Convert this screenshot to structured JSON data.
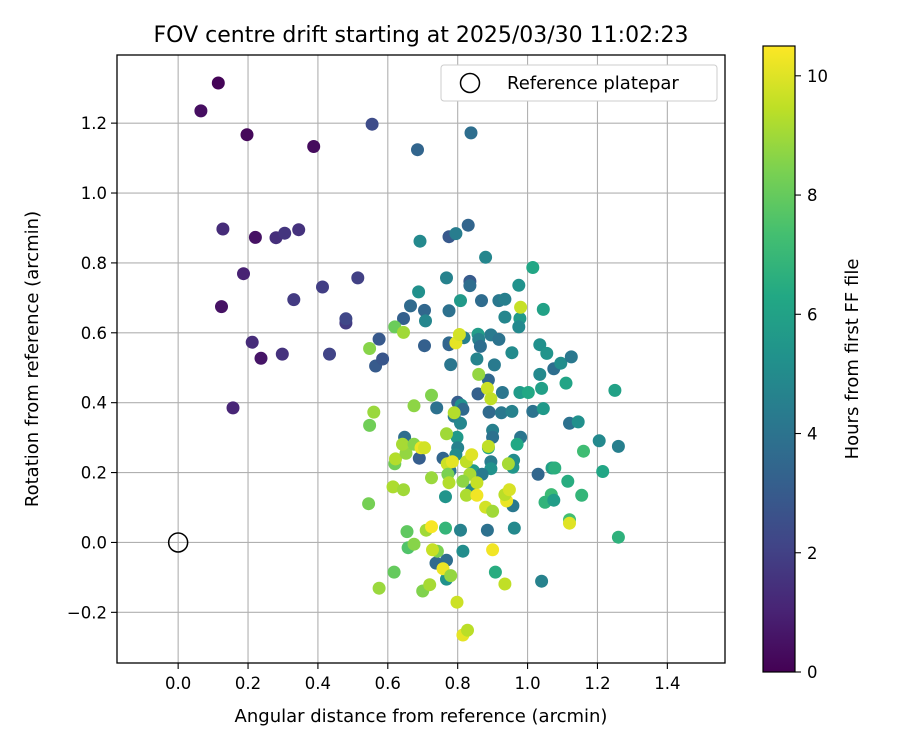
{
  "chart_data": {
    "type": "scatter",
    "title": "FOV centre drift starting at 2025/03/30 11:02:23",
    "xlabel": "Angular distance from reference (arcmin)",
    "ylabel": "Rotation from reference (arcmin)",
    "xlim": [
      -0.175,
      1.565
    ],
    "ylim": [
      -0.345,
      1.395
    ],
    "xticks": [
      "0.0",
      "0.2",
      "0.4",
      "0.6",
      "0.8",
      "1.0",
      "1.2",
      "1.4"
    ],
    "xtick_values": [
      0.0,
      0.2,
      0.4,
      0.6,
      0.8,
      1.0,
      1.2,
      1.4
    ],
    "yticks": [
      "−0.2",
      "0.0",
      "0.2",
      "0.4",
      "0.6",
      "0.8",
      "1.0",
      "1.2"
    ],
    "ytick_values": [
      -0.2,
      0.0,
      0.2,
      0.4,
      0.6,
      0.8,
      1.0,
      1.2
    ],
    "grid": true,
    "legend": {
      "placement": "top-right",
      "label": "Reference platepar",
      "marker": "open-circle"
    },
    "reference_point": {
      "x": 0.0,
      "y": 0.0
    },
    "colorbar": {
      "label": "Hours from first FF file",
      "range": [
        0,
        10.5
      ],
      "ticks": [
        "0",
        "2",
        "4",
        "6",
        "8",
        "10"
      ],
      "tick_values": [
        0,
        2,
        4,
        6,
        8,
        10
      ],
      "colormap": "viridis"
    },
    "points": [
      {
        "x": 0.115,
        "y": 1.315,
        "h": 0.1
      },
      {
        "x": 0.065,
        "y": 1.235,
        "h": 0.4
      },
      {
        "x": 0.197,
        "y": 1.167,
        "h": 0.2
      },
      {
        "x": 0.388,
        "y": 1.133,
        "h": 0.3
      },
      {
        "x": 0.128,
        "y": 0.897,
        "h": 1.3
      },
      {
        "x": 0.221,
        "y": 0.873,
        "h": 0.5
      },
      {
        "x": 0.28,
        "y": 0.872,
        "h": 1.4
      },
      {
        "x": 0.305,
        "y": 0.885,
        "h": 1.6
      },
      {
        "x": 0.345,
        "y": 0.895,
        "h": 1.5
      },
      {
        "x": 0.187,
        "y": 0.769,
        "h": 1.0
      },
      {
        "x": 0.124,
        "y": 0.675,
        "h": 0.5
      },
      {
        "x": 0.331,
        "y": 0.695,
        "h": 1.8
      },
      {
        "x": 0.413,
        "y": 0.731,
        "h": 1.9
      },
      {
        "x": 0.514,
        "y": 0.757,
        "h": 2.0
      },
      {
        "x": 0.212,
        "y": 0.573,
        "h": 1.3
      },
      {
        "x": 0.298,
        "y": 0.539,
        "h": 1.5
      },
      {
        "x": 0.237,
        "y": 0.527,
        "h": 0.6
      },
      {
        "x": 0.433,
        "y": 0.539,
        "h": 2.1
      },
      {
        "x": 0.48,
        "y": 0.628,
        "h": 1.8
      },
      {
        "x": 0.48,
        "y": 0.64,
        "h": 2.2
      },
      {
        "x": 0.157,
        "y": 0.385,
        "h": 1.1
      },
      {
        "x": 0.555,
        "y": 1.197,
        "h": 2.4
      },
      {
        "x": 0.685,
        "y": 1.124,
        "h": 3.4
      },
      {
        "x": 0.838,
        "y": 1.172,
        "h": 3.8
      },
      {
        "x": 0.575,
        "y": 0.582,
        "h": 2.9
      },
      {
        "x": 0.565,
        "y": 0.505,
        "h": 3.0
      },
      {
        "x": 0.585,
        "y": 0.525,
        "h": 2.8
      },
      {
        "x": 0.645,
        "y": 0.641,
        "h": 3.2
      },
      {
        "x": 0.665,
        "y": 0.677,
        "h": 3.6
      },
      {
        "x": 0.705,
        "y": 0.664,
        "h": 3.5
      },
      {
        "x": 0.708,
        "y": 0.634,
        "h": 4.8
      },
      {
        "x": 0.688,
        "y": 0.717,
        "h": 5.2
      },
      {
        "x": 0.692,
        "y": 0.862,
        "h": 4.9
      },
      {
        "x": 0.775,
        "y": 0.875,
        "h": 2.9
      },
      {
        "x": 0.795,
        "y": 0.884,
        "h": 4.4
      },
      {
        "x": 0.83,
        "y": 0.908,
        "h": 3.4
      },
      {
        "x": 0.88,
        "y": 0.816,
        "h": 4.8
      },
      {
        "x": 0.835,
        "y": 0.747,
        "h": 3.0
      },
      {
        "x": 0.835,
        "y": 0.735,
        "h": 3.8
      },
      {
        "x": 0.768,
        "y": 0.757,
        "h": 4.6
      },
      {
        "x": 0.808,
        "y": 0.692,
        "h": 5.6
      },
      {
        "x": 0.868,
        "y": 0.692,
        "h": 3.7
      },
      {
        "x": 0.918,
        "y": 0.692,
        "h": 4.2
      },
      {
        "x": 0.935,
        "y": 0.696,
        "h": 4.5
      },
      {
        "x": 0.975,
        "y": 0.736,
        "h": 5.3
      },
      {
        "x": 1.015,
        "y": 0.787,
        "h": 6.2
      },
      {
        "x": 1.045,
        "y": 0.667,
        "h": 6.0
      },
      {
        "x": 0.978,
        "y": 0.641,
        "h": 5.6
      },
      {
        "x": 0.975,
        "y": 0.617,
        "h": 4.9
      },
      {
        "x": 0.935,
        "y": 0.645,
        "h": 4.8
      },
      {
        "x": 0.895,
        "y": 0.594,
        "h": 4.3
      },
      {
        "x": 0.918,
        "y": 0.581,
        "h": 4.0
      },
      {
        "x": 0.858,
        "y": 0.596,
        "h": 5.8
      },
      {
        "x": 0.86,
        "y": 0.581,
        "h": 4.6
      },
      {
        "x": 0.865,
        "y": 0.561,
        "h": 3.8
      },
      {
        "x": 0.818,
        "y": 0.586,
        "h": 4.5
      },
      {
        "x": 0.775,
        "y": 0.663,
        "h": 3.9
      },
      {
        "x": 0.775,
        "y": 0.571,
        "h": 3.7
      },
      {
        "x": 0.705,
        "y": 0.563,
        "h": 3.2
      },
      {
        "x": 0.775,
        "y": 0.566,
        "h": 3.4
      },
      {
        "x": 0.78,
        "y": 0.509,
        "h": 4.1
      },
      {
        "x": 0.855,
        "y": 0.525,
        "h": 4.7
      },
      {
        "x": 0.905,
        "y": 0.508,
        "h": 4.3
      },
      {
        "x": 0.955,
        "y": 0.543,
        "h": 5.0
      },
      {
        "x": 1.035,
        "y": 0.566,
        "h": 5.2
      },
      {
        "x": 1.055,
        "y": 0.541,
        "h": 5.4
      },
      {
        "x": 1.035,
        "y": 0.481,
        "h": 4.9
      },
      {
        "x": 1.075,
        "y": 0.497,
        "h": 3.8
      },
      {
        "x": 1.095,
        "y": 0.513,
        "h": 5.1
      },
      {
        "x": 1.125,
        "y": 0.531,
        "h": 4.2
      },
      {
        "x": 1.11,
        "y": 0.456,
        "h": 6.1
      },
      {
        "x": 1.04,
        "y": 0.441,
        "h": 5.9
      },
      {
        "x": 0.978,
        "y": 0.429,
        "h": 5.7
      },
      {
        "x": 1.002,
        "y": 0.429,
        "h": 6.3
      },
      {
        "x": 0.928,
        "y": 0.429,
        "h": 4.1
      },
      {
        "x": 0.888,
        "y": 0.465,
        "h": 3.5
      },
      {
        "x": 0.858,
        "y": 0.425,
        "h": 3.2
      },
      {
        "x": 0.8,
        "y": 0.401,
        "h": 3.1
      },
      {
        "x": 0.81,
        "y": 0.393,
        "h": 5.2
      },
      {
        "x": 0.74,
        "y": 0.385,
        "h": 3.9
      },
      {
        "x": 0.815,
        "y": 0.381,
        "h": 3.6
      },
      {
        "x": 0.79,
        "y": 0.361,
        "h": 4.3
      },
      {
        "x": 0.808,
        "y": 0.341,
        "h": 4.8
      },
      {
        "x": 0.89,
        "y": 0.373,
        "h": 3.6
      },
      {
        "x": 0.925,
        "y": 0.371,
        "h": 4.2
      },
      {
        "x": 0.955,
        "y": 0.375,
        "h": 4.6
      },
      {
        "x": 1.015,
        "y": 0.375,
        "h": 4.0
      },
      {
        "x": 1.045,
        "y": 0.383,
        "h": 5.6
      },
      {
        "x": 1.12,
        "y": 0.341,
        "h": 3.9
      },
      {
        "x": 1.145,
        "y": 0.345,
        "h": 5.2
      },
      {
        "x": 1.25,
        "y": 0.435,
        "h": 6.0
      },
      {
        "x": 1.16,
        "y": 0.261,
        "h": 7.2
      },
      {
        "x": 1.205,
        "y": 0.291,
        "h": 4.9
      },
      {
        "x": 1.26,
        "y": 0.275,
        "h": 4.5
      },
      {
        "x": 1.215,
        "y": 0.203,
        "h": 6.2
      },
      {
        "x": 1.115,
        "y": 0.175,
        "h": 6.5
      },
      {
        "x": 1.155,
        "y": 0.135,
        "h": 6.9
      },
      {
        "x": 1.07,
        "y": 0.213,
        "h": 5.9
      },
      {
        "x": 1.078,
        "y": 0.213,
        "h": 6.6
      },
      {
        "x": 1.03,
        "y": 0.195,
        "h": 3.5
      },
      {
        "x": 1.068,
        "y": 0.137,
        "h": 7.1
      },
      {
        "x": 1.05,
        "y": 0.115,
        "h": 6.8
      },
      {
        "x": 1.075,
        "y": 0.121,
        "h": 5.8
      },
      {
        "x": 1.12,
        "y": 0.065,
        "h": 7.3
      },
      {
        "x": 1.26,
        "y": 0.015,
        "h": 6.7
      },
      {
        "x": 1.04,
        "y": -0.111,
        "h": 4.6
      },
      {
        "x": 0.98,
        "y": 0.301,
        "h": 4.1
      },
      {
        "x": 0.97,
        "y": 0.281,
        "h": 6.3
      },
      {
        "x": 0.958,
        "y": 0.215,
        "h": 5.5
      },
      {
        "x": 0.96,
        "y": 0.235,
        "h": 5.1
      },
      {
        "x": 0.962,
        "y": 0.041,
        "h": 4.9
      },
      {
        "x": 0.958,
        "y": 0.105,
        "h": 4.2
      },
      {
        "x": 0.9,
        "y": 0.321,
        "h": 4.5
      },
      {
        "x": 0.9,
        "y": 0.301,
        "h": 3.9
      },
      {
        "x": 0.888,
        "y": 0.271,
        "h": 6.1
      },
      {
        "x": 0.895,
        "y": 0.231,
        "h": 4.4
      },
      {
        "x": 0.895,
        "y": 0.211,
        "h": 5.3
      },
      {
        "x": 0.908,
        "y": -0.085,
        "h": 6.5
      },
      {
        "x": 0.798,
        "y": 0.301,
        "h": 5.6
      },
      {
        "x": 0.8,
        "y": 0.271,
        "h": 4.6
      },
      {
        "x": 0.795,
        "y": 0.251,
        "h": 5.0
      },
      {
        "x": 0.758,
        "y": 0.241,
        "h": 3.4
      },
      {
        "x": 0.69,
        "y": 0.241,
        "h": 3.1
      },
      {
        "x": 0.648,
        "y": 0.301,
        "h": 3.8
      },
      {
        "x": 0.778,
        "y": 0.205,
        "h": 4.1
      },
      {
        "x": 0.845,
        "y": 0.205,
        "h": 5.7
      },
      {
        "x": 0.84,
        "y": 0.151,
        "h": 4.8
      },
      {
        "x": 0.765,
        "y": 0.131,
        "h": 5.4
      },
      {
        "x": 0.87,
        "y": 0.195,
        "h": 4.3
      },
      {
        "x": 0.808,
        "y": 0.035,
        "h": 4.6
      },
      {
        "x": 0.885,
        "y": 0.035,
        "h": 3.9
      },
      {
        "x": 0.815,
        "y": -0.025,
        "h": 5.1
      },
      {
        "x": 0.768,
        "y": -0.051,
        "h": 3.8
      },
      {
        "x": 0.738,
        "y": -0.059,
        "h": 3.6
      },
      {
        "x": 0.768,
        "y": -0.105,
        "h": 5.3
      },
      {
        "x": 0.765,
        "y": 0.041,
        "h": 6.9
      },
      {
        "x": 0.71,
        "y": 0.035,
        "h": 9.0
      },
      {
        "x": 0.742,
        "y": -0.025,
        "h": 8.4
      },
      {
        "x": 0.655,
        "y": 0.031,
        "h": 7.9
      },
      {
        "x": 0.658,
        "y": -0.015,
        "h": 7.6
      },
      {
        "x": 0.675,
        "y": -0.005,
        "h": 8.6
      },
      {
        "x": 0.618,
        "y": -0.085,
        "h": 8.0
      },
      {
        "x": 0.575,
        "y": -0.131,
        "h": 8.9
      },
      {
        "x": 0.7,
        "y": -0.139,
        "h": 8.5
      },
      {
        "x": 0.72,
        "y": -0.121,
        "h": 9.1
      },
      {
        "x": 0.725,
        "y": 0.045,
        "h": 10.4
      },
      {
        "x": 0.728,
        "y": -0.021,
        "h": 9.6
      },
      {
        "x": 0.758,
        "y": -0.075,
        "h": 10.2
      },
      {
        "x": 0.78,
        "y": -0.095,
        "h": 8.8
      },
      {
        "x": 0.798,
        "y": -0.171,
        "h": 9.7
      },
      {
        "x": 0.815,
        "y": -0.265,
        "h": 10.1
      },
      {
        "x": 0.828,
        "y": -0.251,
        "h": 9.4
      },
      {
        "x": 0.9,
        "y": -0.021,
        "h": 10.3
      },
      {
        "x": 0.935,
        "y": -0.119,
        "h": 9.5
      },
      {
        "x": 0.545,
        "y": 0.111,
        "h": 8.3
      },
      {
        "x": 0.615,
        "y": 0.159,
        "h": 9.2
      },
      {
        "x": 0.645,
        "y": 0.151,
        "h": 9.0
      },
      {
        "x": 0.62,
        "y": 0.225,
        "h": 8.2
      },
      {
        "x": 0.622,
        "y": 0.239,
        "h": 9.3
      },
      {
        "x": 0.652,
        "y": 0.255,
        "h": 8.8
      },
      {
        "x": 0.642,
        "y": 0.281,
        "h": 9.1
      },
      {
        "x": 0.675,
        "y": 0.281,
        "h": 8.6
      },
      {
        "x": 0.695,
        "y": 0.271,
        "h": 10.2
      },
      {
        "x": 0.705,
        "y": 0.271,
        "h": 9.8
      },
      {
        "x": 0.725,
        "y": 0.185,
        "h": 8.9
      },
      {
        "x": 0.77,
        "y": 0.225,
        "h": 9.7
      },
      {
        "x": 0.785,
        "y": 0.231,
        "h": 10.1
      },
      {
        "x": 0.772,
        "y": 0.195,
        "h": 8.4
      },
      {
        "x": 0.775,
        "y": 0.171,
        "h": 9.3
      },
      {
        "x": 0.825,
        "y": 0.231,
        "h": 9.5
      },
      {
        "x": 0.84,
        "y": 0.251,
        "h": 10.0
      },
      {
        "x": 0.835,
        "y": 0.195,
        "h": 9.1
      },
      {
        "x": 0.815,
        "y": 0.175,
        "h": 8.7
      },
      {
        "x": 0.855,
        "y": 0.171,
        "h": 9.6
      },
      {
        "x": 0.825,
        "y": 0.135,
        "h": 9.2
      },
      {
        "x": 0.855,
        "y": 0.135,
        "h": 10.3
      },
      {
        "x": 0.888,
        "y": 0.275,
        "h": 9.5
      },
      {
        "x": 0.88,
        "y": 0.101,
        "h": 9.8
      },
      {
        "x": 0.9,
        "y": 0.089,
        "h": 9.0
      },
      {
        "x": 0.94,
        "y": 0.119,
        "h": 10.2
      },
      {
        "x": 0.935,
        "y": 0.137,
        "h": 9.4
      },
      {
        "x": 0.948,
        "y": 0.151,
        "h": 9.9
      },
      {
        "x": 0.945,
        "y": 0.225,
        "h": 9.1
      },
      {
        "x": 0.885,
        "y": 0.441,
        "h": 9.7
      },
      {
        "x": 0.895,
        "y": 0.411,
        "h": 9.5
      },
      {
        "x": 0.86,
        "y": 0.481,
        "h": 8.8
      },
      {
        "x": 0.79,
        "y": 0.371,
        "h": 9.3
      },
      {
        "x": 0.768,
        "y": 0.311,
        "h": 9.0
      },
      {
        "x": 0.725,
        "y": 0.421,
        "h": 8.5
      },
      {
        "x": 0.675,
        "y": 0.391,
        "h": 8.7
      },
      {
        "x": 0.56,
        "y": 0.373,
        "h": 8.9
      },
      {
        "x": 0.548,
        "y": 0.335,
        "h": 8.2
      },
      {
        "x": 0.548,
        "y": 0.555,
        "h": 8.6
      },
      {
        "x": 0.62,
        "y": 0.617,
        "h": 8.1
      },
      {
        "x": 0.645,
        "y": 0.601,
        "h": 9.0
      },
      {
        "x": 0.795,
        "y": 0.571,
        "h": 10.1
      },
      {
        "x": 0.805,
        "y": 0.595,
        "h": 9.8
      },
      {
        "x": 0.98,
        "y": 0.673,
        "h": 9.6
      },
      {
        "x": 1.12,
        "y": 0.055,
        "h": 10.0
      }
    ]
  }
}
